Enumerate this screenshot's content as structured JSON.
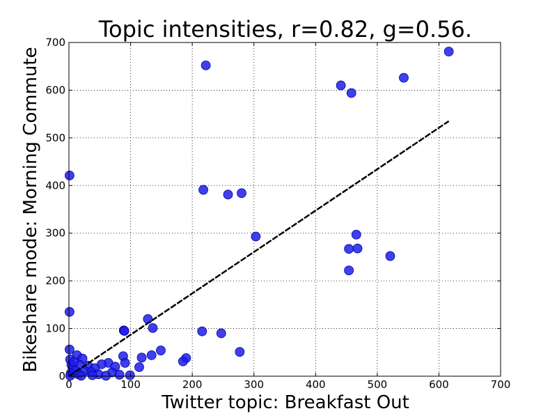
{
  "chart_data": {
    "type": "scatter",
    "title": "Topic intensities,   r=0.82, g=0.56.",
    "xlabel": "Twitter topic: Breakfast Out",
    "ylabel": "Bikeshare mode: Morning Commute",
    "xlim": [
      0,
      700
    ],
    "ylim": [
      0,
      700
    ],
    "xticks": [
      0,
      100,
      200,
      300,
      400,
      500,
      600,
      700
    ],
    "yticks": [
      0,
      100,
      200,
      300,
      400,
      500,
      600,
      700
    ],
    "grid": true,
    "colors": {
      "points": "#1f1fe8",
      "points_edge": "#0000aa",
      "fit_line": "#000000"
    },
    "points": [
      {
        "x": 616,
        "y": 681
      },
      {
        "x": 222,
        "y": 652
      },
      {
        "x": 543,
        "y": 626
      },
      {
        "x": 441,
        "y": 610
      },
      {
        "x": 458,
        "y": 594
      },
      {
        "x": 1,
        "y": 421
      },
      {
        "x": 218,
        "y": 391
      },
      {
        "x": 258,
        "y": 381
      },
      {
        "x": 280,
        "y": 384
      },
      {
        "x": 303,
        "y": 293
      },
      {
        "x": 466,
        "y": 297
      },
      {
        "x": 454,
        "y": 267
      },
      {
        "x": 468,
        "y": 268
      },
      {
        "x": 521,
        "y": 252
      },
      {
        "x": 454,
        "y": 222
      },
      {
        "x": 1,
        "y": 135
      },
      {
        "x": 128,
        "y": 120
      },
      {
        "x": 136,
        "y": 101
      },
      {
        "x": 89,
        "y": 96
      },
      {
        "x": 90,
        "y": 95
      },
      {
        "x": 216,
        "y": 94
      },
      {
        "x": 247,
        "y": 90
      },
      {
        "x": 1,
        "y": 56
      },
      {
        "x": 149,
        "y": 54
      },
      {
        "x": 277,
        "y": 51
      },
      {
        "x": 13,
        "y": 44
      },
      {
        "x": 88,
        "y": 42
      },
      {
        "x": 134,
        "y": 44
      },
      {
        "x": 118,
        "y": 39
      },
      {
        "x": 190,
        "y": 38
      },
      {
        "x": 22,
        "y": 37
      },
      {
        "x": 2,
        "y": 35
      },
      {
        "x": 64,
        "y": 28
      },
      {
        "x": 53,
        "y": 25
      },
      {
        "x": 91,
        "y": 28
      },
      {
        "x": 185,
        "y": 31
      },
      {
        "x": 4,
        "y": 24
      },
      {
        "x": 31,
        "y": 22
      },
      {
        "x": 17,
        "y": 24
      },
      {
        "x": 75,
        "y": 20
      },
      {
        "x": 114,
        "y": 19
      },
      {
        "x": 6,
        "y": 16
      },
      {
        "x": 42,
        "y": 17
      },
      {
        "x": 10,
        "y": 12
      },
      {
        "x": 26,
        "y": 11
      },
      {
        "x": 36,
        "y": 9
      },
      {
        "x": 70,
        "y": 8
      },
      {
        "x": 3,
        "y": 6
      },
      {
        "x": 15,
        "y": 4
      },
      {
        "x": 48,
        "y": 4
      },
      {
        "x": 82,
        "y": 3
      },
      {
        "x": 99,
        "y": 2
      },
      {
        "x": 2,
        "y": 1
      },
      {
        "x": 20,
        "y": 1
      },
      {
        "x": 38,
        "y": 2
      },
      {
        "x": 60,
        "y": 1
      },
      {
        "x": 8,
        "y": 30
      }
    ],
    "fit_line": {
      "x": [
        0,
        616
      ],
      "y": [
        0,
        535
      ]
    }
  }
}
